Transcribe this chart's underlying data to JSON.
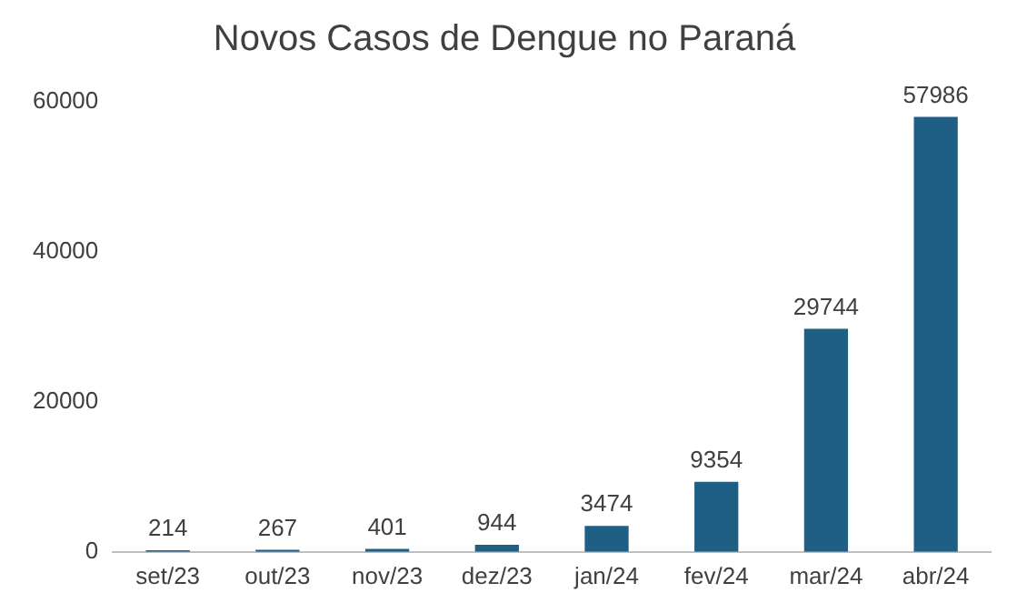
{
  "chart_data": {
    "type": "bar",
    "title": "Novos Casos de Dengue no Paraná",
    "categories": [
      "set/23",
      "out/23",
      "nov/23",
      "dez/23",
      "jan/24",
      "fev/24",
      "mar/24",
      "abr/24"
    ],
    "values": [
      214,
      267,
      401,
      944,
      3474,
      9354,
      29744,
      57986
    ],
    "color": "#1f5f84",
    "ylim": [
      0,
      60000
    ],
    "yticks": [
      0,
      20000,
      40000,
      60000
    ],
    "grid": false,
    "legend": false,
    "data_labels": true
  }
}
